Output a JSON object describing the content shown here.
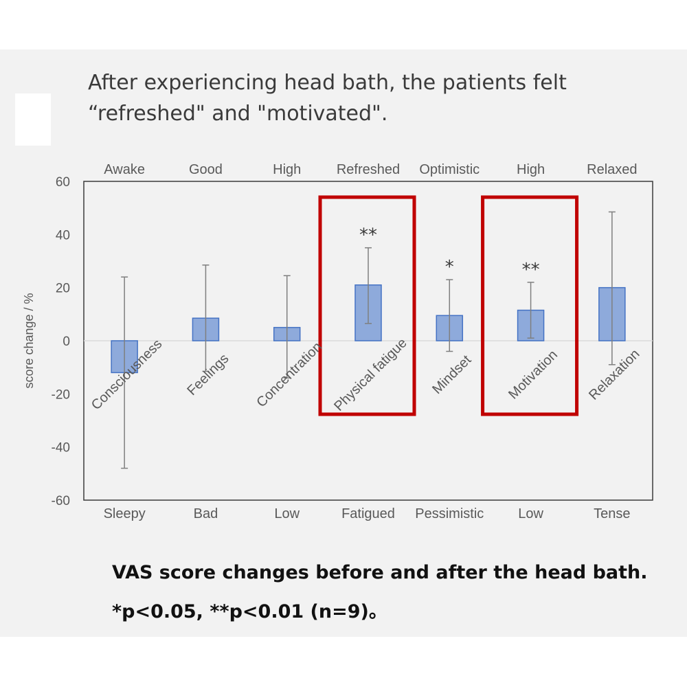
{
  "title": {
    "line1": "After experiencing head bath, the patients felt",
    "line2": "“refreshed\" and \"motivated\"."
  },
  "caption": {
    "line1": "VAS score changes before and after the head bath.",
    "line2": "*p<0.05, **p<0.01 (n=9)。"
  },
  "colors": {
    "bar_fill": "#8eaadb",
    "bar_stroke": "#4472c4",
    "highlight_box": "#c00000",
    "error_bar": "#7f7f7f",
    "text": "#595959"
  },
  "chart_data": {
    "type": "bar",
    "ylabel": "score change / %",
    "ylim": [
      -60,
      60
    ],
    "yticks": [
      60,
      40,
      20,
      0,
      -20,
      -40,
      -60
    ],
    "grid": false,
    "categories": [
      "Consciousness",
      "Feelings",
      "Concentration",
      "Physical fatigue",
      "Mindset",
      "Motivation",
      "Relaxation"
    ],
    "top_anchor_labels": [
      "Awake",
      "Good",
      "High",
      "Refreshed",
      "Optimistic",
      "High",
      "Relaxed"
    ],
    "bottom_anchor_labels": [
      "Sleepy",
      "Bad",
      "Low",
      "Fatigued",
      "Pessimistic",
      "Low",
      "Tense"
    ],
    "series": [
      {
        "values": [
          -12,
          8.5,
          5,
          21,
          9.5,
          11.5,
          20
        ],
        "error_upper": [
          24,
          28.5,
          24.5,
          35,
          23,
          22,
          48.5
        ],
        "error_lower": [
          -48,
          -11.5,
          -14,
          6.5,
          -4,
          1,
          -9
        ]
      }
    ],
    "significance": [
      "",
      "",
      "",
      "**",
      "*",
      "**",
      ""
    ],
    "highlighted": [
      "Physical fatigue",
      "Motivation"
    ]
  }
}
